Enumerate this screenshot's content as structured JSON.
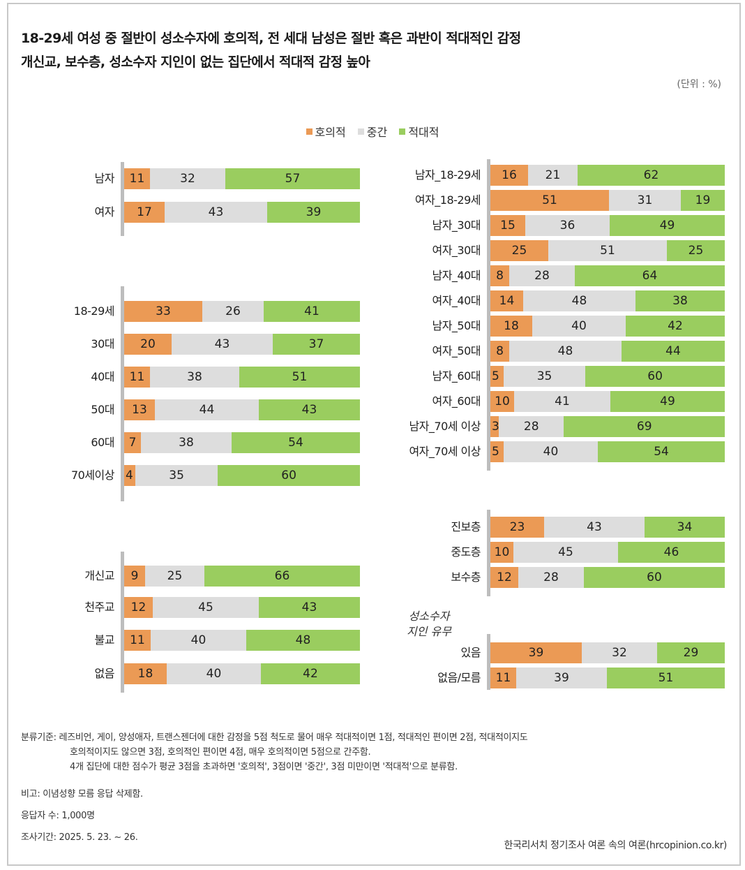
{
  "title_line1": "18-29세 여성 중 절반이 성소수자에 호의적, 전 세대 남성은 절반 혹은 과반이 적대적인 감정",
  "title_line2": "개신교, 보수층, 성소수자 지인이 없는 집단에서 적대적 감정 높아",
  "unit": "(단위 : %)",
  "legend": [
    {
      "label": "호의적",
      "color": "#eb9a55"
    },
    {
      "label": "중간",
      "color": "#dddddd"
    },
    {
      "label": "적대적",
      "color": "#9acd5f"
    }
  ],
  "acquaintance_label": "성소수자\n지인 유무",
  "chart_data": [
    {
      "type": "bar",
      "stacked": true,
      "orientation": "horizontal",
      "group": "gender",
      "categories": [
        "남자",
        "여자"
      ],
      "series": [
        {
          "name": "호의적",
          "values": [
            11,
            17
          ]
        },
        {
          "name": "중간",
          "values": [
            32,
            43
          ]
        },
        {
          "name": "적대적",
          "values": [
            57,
            39
          ]
        }
      ]
    },
    {
      "type": "bar",
      "stacked": true,
      "orientation": "horizontal",
      "group": "age",
      "categories": [
        "18-29세",
        "30대",
        "40대",
        "50대",
        "60대",
        "70세이상"
      ],
      "series": [
        {
          "name": "호의적",
          "values": [
            33,
            20,
            11,
            13,
            7,
            4
          ]
        },
        {
          "name": "중간",
          "values": [
            26,
            43,
            38,
            44,
            38,
            35
          ]
        },
        {
          "name": "적대적",
          "values": [
            41,
            37,
            51,
            43,
            54,
            60
          ]
        }
      ]
    },
    {
      "type": "bar",
      "stacked": true,
      "orientation": "horizontal",
      "group": "religion",
      "categories": [
        "개신교",
        "천주교",
        "불교",
        "없음"
      ],
      "series": [
        {
          "name": "호의적",
          "values": [
            9,
            12,
            11,
            18
          ]
        },
        {
          "name": "중간",
          "values": [
            25,
            45,
            40,
            40
          ]
        },
        {
          "name": "적대적",
          "values": [
            66,
            43,
            48,
            42
          ]
        }
      ]
    },
    {
      "type": "bar",
      "stacked": true,
      "orientation": "horizontal",
      "group": "gender_age",
      "categories": [
        "남자_18-29세",
        "여자_18-29세",
        "남자_30대",
        "여자_30대",
        "남자_40대",
        "여자_40대",
        "남자_50대",
        "여자_50대",
        "남자_60대",
        "여자_60대",
        "남자_70세 이상",
        "여자_70세 이상"
      ],
      "series": [
        {
          "name": "호의적",
          "values": [
            16,
            51,
            15,
            25,
            8,
            14,
            18,
            8,
            5,
            10,
            3,
            5
          ]
        },
        {
          "name": "중간",
          "values": [
            21,
            31,
            36,
            51,
            28,
            48,
            40,
            48,
            35,
            41,
            28,
            40
          ]
        },
        {
          "name": "적대적",
          "values": [
            62,
            19,
            49,
            25,
            64,
            38,
            42,
            44,
            60,
            49,
            69,
            54
          ]
        }
      ]
    },
    {
      "type": "bar",
      "stacked": true,
      "orientation": "horizontal",
      "group": "ideology",
      "categories": [
        "진보층",
        "중도층",
        "보수층"
      ],
      "series": [
        {
          "name": "호의적",
          "values": [
            23,
            10,
            12
          ]
        },
        {
          "name": "중간",
          "values": [
            43,
            45,
            28
          ]
        },
        {
          "name": "적대적",
          "values": [
            34,
            46,
            60
          ]
        }
      ]
    },
    {
      "type": "bar",
      "stacked": true,
      "orientation": "horizontal",
      "group": "acquaintance",
      "categories": [
        "있음",
        "없음/모름"
      ],
      "series": [
        {
          "name": "호의적",
          "values": [
            39,
            11
          ]
        },
        {
          "name": "중간",
          "values": [
            32,
            39
          ]
        },
        {
          "name": "적대적",
          "values": [
            29,
            51
          ]
        }
      ]
    }
  ],
  "notes": {
    "criteria_1": "분류기준: 레즈비언, 게이, 양성애자, 트랜스젠더에 대한  감정을 5점 척도로 물어 매우 적대적이면 1점, 적대적인 편이면 2점, 적대적이지도",
    "criteria_2": "호의적이지도 않으면 3점, 호의적인 편이면 4점, 매우 호의적이면 5점으로 간주함.",
    "criteria_3": "4개 집단에 대한 점수가 평균 3점을 초과하면 '호의적', 3점이면 '중간', 3점 미만이면 '적대적'으로 분류함.",
    "remark": "비고: 이념성향 모름 응답 삭제함.",
    "respondents": "응답자 수: 1,000명",
    "period": "조사기간: 2025. 5. 23. ~ 26."
  },
  "source": "한국리서치 정기조사 여론 속의 여론(hrcopinion.co.kr)"
}
